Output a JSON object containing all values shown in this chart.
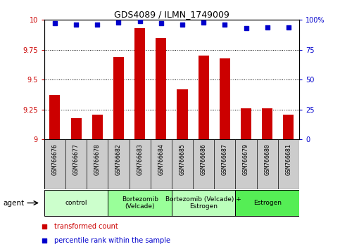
{
  "title": "GDS4089 / ILMN_1749009",
  "samples": [
    "GSM766676",
    "GSM766677",
    "GSM766678",
    "GSM766682",
    "GSM766683",
    "GSM766684",
    "GSM766685",
    "GSM766686",
    "GSM766687",
    "GSM766679",
    "GSM766680",
    "GSM766681"
  ],
  "bar_values": [
    9.37,
    9.18,
    9.21,
    9.69,
    9.93,
    9.85,
    9.42,
    9.7,
    9.68,
    9.26,
    9.26,
    9.21
  ],
  "percentile_values": [
    97,
    96,
    96,
    98,
    99,
    97,
    96,
    98,
    96,
    93,
    94,
    94
  ],
  "bar_color": "#cc0000",
  "dot_color": "#0000cc",
  "ylim_left": [
    9.0,
    10.0
  ],
  "ylim_right": [
    0,
    100
  ],
  "yticks_left": [
    9.0,
    9.25,
    9.5,
    9.75,
    10.0
  ],
  "yticks_right": [
    0,
    25,
    50,
    75,
    100
  ],
  "ytick_labels_left": [
    "9",
    "9.25",
    "9.5",
    "9.75",
    "10"
  ],
  "ytick_labels_right": [
    "0",
    "25",
    "50",
    "75",
    "100%"
  ],
  "groups": [
    {
      "label": "control",
      "start": 0,
      "end": 3,
      "color": "#ccffcc"
    },
    {
      "label": "Bortezomib\n(Velcade)",
      "start": 3,
      "end": 6,
      "color": "#99ff99"
    },
    {
      "label": "Bortezomib (Velcade) +\nEstrogen",
      "start": 6,
      "end": 9,
      "color": "#bbffbb"
    },
    {
      "label": "Estrogen",
      "start": 9,
      "end": 12,
      "color": "#55ee55"
    }
  ],
  "agent_label": "agent",
  "legend_bar_label": "transformed count",
  "legend_dot_label": "percentile rank within the sample",
  "grid_color": "#000000",
  "tick_label_bg": "#cccccc",
  "bar_width": 0.5,
  "fig_width": 4.83,
  "fig_height": 3.54,
  "dpi": 100
}
